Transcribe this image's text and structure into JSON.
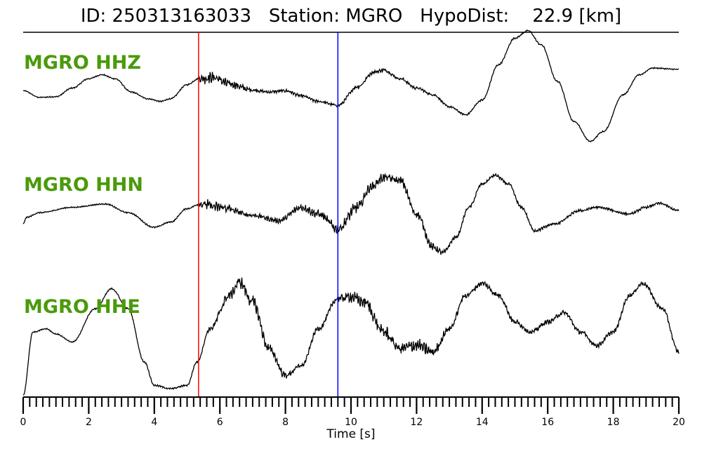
{
  "title": "ID: 250313163033   Station: MGRO   HypoDist:    22.9 [km]",
  "colors": {
    "label": "#4a9a0a",
    "p_pick": "#ff0000",
    "s_pick": "#0000ff",
    "trace": "#000000"
  },
  "chart_data": {
    "type": "line",
    "title": "ID: 250313163033   Station: MGRO   HypoDist:    22.9 [km]",
    "xlabel": "Time [s]",
    "ylabel": "",
    "xlim": [
      0,
      20
    ],
    "x_major_ticks": [
      0,
      2,
      4,
      6,
      8,
      10,
      12,
      14,
      16,
      18,
      20
    ],
    "x_minor_step": 0.2,
    "grid": false,
    "picks": [
      {
        "name": "P",
        "time": 5.35,
        "color": "#ff0000"
      },
      {
        "name": "S",
        "time": 9.6,
        "color": "#0000ff"
      }
    ],
    "series": [
      {
        "name": "MGRO HHZ",
        "trend": [
          [
            0,
            0.06
          ],
          [
            0.5,
            -0.04
          ],
          [
            1,
            -0.03
          ],
          [
            1.5,
            0.1
          ],
          [
            2,
            0.24
          ],
          [
            2.4,
            0.3
          ],
          [
            2.8,
            0.24
          ],
          [
            3.3,
            0.04
          ],
          [
            3.8,
            -0.06
          ],
          [
            4.2,
            -0.1
          ],
          [
            4.5,
            -0.06
          ],
          [
            5,
            0.15
          ],
          [
            5.35,
            0.24
          ],
          [
            5.8,
            0.26
          ],
          [
            6.3,
            0.16
          ],
          [
            7,
            0.07
          ],
          [
            7.5,
            0.04
          ],
          [
            8,
            0.06
          ],
          [
            8.5,
            -0.02
          ],
          [
            9,
            -0.1
          ],
          [
            9.6,
            -0.16
          ],
          [
            10.2,
            0.12
          ],
          [
            10.7,
            0.34
          ],
          [
            11,
            0.37
          ],
          [
            11.5,
            0.24
          ],
          [
            12,
            0.1
          ],
          [
            12.5,
            0
          ],
          [
            13,
            -0.18
          ],
          [
            13.5,
            -0.3
          ],
          [
            14,
            -0.08
          ],
          [
            14.5,
            0.45
          ],
          [
            15,
            0.85
          ],
          [
            15.4,
            0.96
          ],
          [
            15.8,
            0.75
          ],
          [
            16.3,
            0.2
          ],
          [
            16.8,
            -0.4
          ],
          [
            17.3,
            -0.7
          ],
          [
            17.7,
            -0.55
          ],
          [
            18.3,
            0
          ],
          [
            18.8,
            0.3
          ],
          [
            19.2,
            0.4
          ],
          [
            20,
            0.38
          ]
        ],
        "noise": [
          [
            0,
            0.006
          ],
          [
            5.3,
            0.008
          ],
          [
            5.5,
            0.06
          ],
          [
            6.3,
            0.05
          ],
          [
            7,
            0.02
          ],
          [
            9.5,
            0.015
          ],
          [
            10,
            0.02
          ],
          [
            11,
            0.02
          ],
          [
            13,
            0.01
          ],
          [
            20,
            0.006
          ]
        ]
      },
      {
        "name": "MGRO HHN",
        "trend": [
          [
            0,
            -0.15
          ],
          [
            0.1,
            -0.05
          ],
          [
            0.5,
            0.02
          ],
          [
            1.5,
            0.1
          ],
          [
            2.5,
            0.15
          ],
          [
            3.2,
            0.02
          ],
          [
            4,
            -0.2
          ],
          [
            4.5,
            -0.12
          ],
          [
            5,
            0.08
          ],
          [
            5.4,
            0.15
          ],
          [
            6,
            0.1
          ],
          [
            7,
            -0.02
          ],
          [
            7.8,
            -0.1
          ],
          [
            8.5,
            0.1
          ],
          [
            9,
            0
          ],
          [
            9.6,
            -0.22
          ],
          [
            10.2,
            0.1
          ],
          [
            10.6,
            0.4
          ],
          [
            11,
            0.55
          ],
          [
            11.5,
            0.5
          ],
          [
            12,
            0
          ],
          [
            12.5,
            -0.5
          ],
          [
            12.8,
            -0.58
          ],
          [
            13.2,
            -0.35
          ],
          [
            13.6,
            0.1
          ],
          [
            14,
            0.45
          ],
          [
            14.4,
            0.58
          ],
          [
            14.8,
            0.45
          ],
          [
            15.2,
            0.1
          ],
          [
            15.6,
            -0.25
          ],
          [
            16.2,
            -0.15
          ],
          [
            17,
            0.05
          ],
          [
            17.5,
            0.1
          ],
          [
            18.5,
            0.0
          ],
          [
            19,
            0.1
          ],
          [
            19.4,
            0.16
          ],
          [
            20,
            0.05
          ]
        ],
        "noise": [
          [
            0,
            0.006
          ],
          [
            5.3,
            0.008
          ],
          [
            5.5,
            0.06
          ],
          [
            6.2,
            0.05
          ],
          [
            7,
            0.02
          ],
          [
            10,
            0.06
          ],
          [
            10.5,
            0.05
          ],
          [
            11.5,
            0.05
          ],
          [
            12.5,
            0.04
          ],
          [
            13,
            0.02
          ],
          [
            20,
            0.012
          ]
        ]
      },
      {
        "name": "MGRO HHE",
        "trend": [
          [
            0,
            -0.9
          ],
          [
            0.3,
            0.05
          ],
          [
            0.7,
            0.1
          ],
          [
            1,
            0.02
          ],
          [
            1.5,
            -0.1
          ],
          [
            2.2,
            0.4
          ],
          [
            2.7,
            0.7
          ],
          [
            3.2,
            0.4
          ],
          [
            3.7,
            -0.4
          ],
          [
            4,
            -0.75
          ],
          [
            4.5,
            -0.8
          ],
          [
            5,
            -0.75
          ],
          [
            5.3,
            -0.4
          ],
          [
            5.7,
            0.1
          ],
          [
            6.3,
            0.6
          ],
          [
            6.6,
            0.8
          ],
          [
            7,
            0.5
          ],
          [
            7.5,
            -0.2
          ],
          [
            8,
            -0.6
          ],
          [
            8.5,
            -0.45
          ],
          [
            9,
            0.1
          ],
          [
            9.6,
            0.55
          ],
          [
            10,
            0.58
          ],
          [
            10.4,
            0.5
          ],
          [
            11,
            0.05
          ],
          [
            11.5,
            -0.2
          ],
          [
            12,
            -0.15
          ],
          [
            12.5,
            -0.25
          ],
          [
            13,
            0.1
          ],
          [
            13.5,
            0.6
          ],
          [
            14,
            0.78
          ],
          [
            14.5,
            0.6
          ],
          [
            15,
            0.2
          ],
          [
            15.5,
            0.05
          ],
          [
            16,
            0.2
          ],
          [
            16.5,
            0.34
          ],
          [
            17,
            0.05
          ],
          [
            17.5,
            -0.15
          ],
          [
            18,
            0.05
          ],
          [
            18.5,
            0.6
          ],
          [
            18.9,
            0.78
          ],
          [
            19.5,
            0.4
          ],
          [
            20,
            -0.25
          ]
        ],
        "noise": [
          [
            0,
            0.006
          ],
          [
            5.5,
            0.01
          ],
          [
            6,
            0.05
          ],
          [
            7,
            0.07
          ],
          [
            7.5,
            0.05
          ],
          [
            8.5,
            0.02
          ],
          [
            9.5,
            0.03
          ],
          [
            10,
            0.06
          ],
          [
            11.5,
            0.08
          ],
          [
            12.5,
            0.06
          ],
          [
            13,
            0.03
          ],
          [
            20,
            0.02
          ]
        ]
      }
    ]
  }
}
